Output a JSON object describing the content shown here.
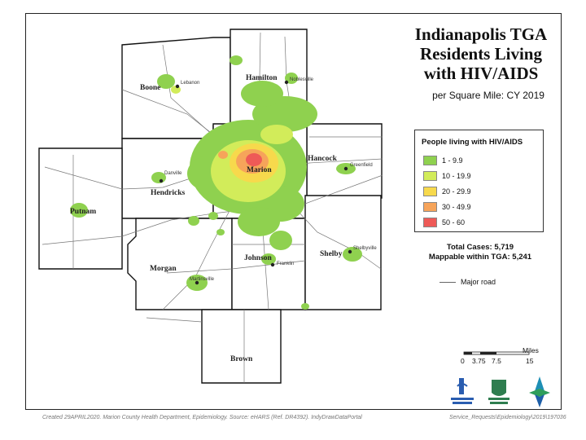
{
  "title": "Indianapolis TGA\nResidents Living\nwith HIV/AIDS",
  "subtitle": "per Square Mile: CY 2019",
  "legend": {
    "title": "People living with HIV/AIDS",
    "items": [
      {
        "label": "1 - 9.9",
        "color": "#8fd14f"
      },
      {
        "label": "10 - 19.9",
        "color": "#d2ec5a"
      },
      {
        "label": "20 - 29.9",
        "color": "#f7d94c"
      },
      {
        "label": "30 - 49.9",
        "color": "#f6a45a"
      },
      {
        "label": "50 - 60",
        "color": "#ee5a57"
      }
    ]
  },
  "totals": {
    "total_cases": "Total Cases: 5,719",
    "mappable": "Mappable within TGA: 5,241"
  },
  "road_key": "Major road",
  "scale": {
    "unit": "Miles",
    "ticks": [
      "0",
      "3.75",
      "7.5",
      "15"
    ]
  },
  "counties": [
    "Boone",
    "Hamilton",
    "Hancock",
    "Hendricks",
    "Putnam",
    "Morgan",
    "Johnson",
    "Shelby",
    "Brown",
    "Marion"
  ],
  "towns": [
    "Lebanon",
    "Noblesville",
    "Greenfield",
    "Danville",
    "Franklin",
    "Shelbyville",
    "Martinsville"
  ],
  "footer_left": "Created 29APRIL2020. Marion County Health Department, Epidemiology. Source: eHARS (Ref. DR4392). IndyDrawDataPortal",
  "footer_right": "Service_Requests\\Epidemiology\\2019\\197036",
  "logos": [
    "health-hospital-logo",
    "marion-health-research-logo",
    "compass-logo"
  ]
}
